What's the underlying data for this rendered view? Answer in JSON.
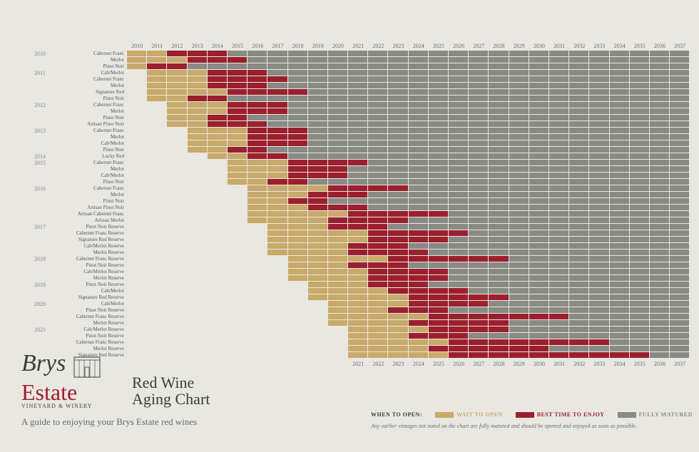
{
  "colors": {
    "wait": "#c9a96a",
    "best": "#9c1f2e",
    "mature": "#8a8a85",
    "empty": "transparent",
    "bg": "#e8e7e2"
  },
  "years_top": [
    2010,
    2011,
    2012,
    2013,
    2014,
    2015,
    2016,
    2017,
    2018,
    2019,
    2020,
    2021,
    2022,
    2023,
    2024,
    2025,
    2026,
    2027,
    2028,
    2029,
    2030,
    2031,
    2032,
    2033,
    2034,
    2035,
    2036,
    2037
  ],
  "years_bottom": [
    2021,
    2022,
    2023,
    2024,
    2025,
    2026,
    2027,
    2028,
    2029,
    2030,
    2031,
    2032,
    2033,
    2034,
    2035,
    2036,
    2037
  ],
  "year_start": 2010,
  "year_end": 2037,
  "vintages": [
    {
      "year": "2010",
      "wines": [
        {
          "name": "Cabernet Franc",
          "wait": [
            2010,
            2011
          ],
          "best": [
            2012,
            2014
          ],
          "mature": [
            2015,
            2037
          ]
        },
        {
          "name": "Merlot",
          "wait": [
            2010,
            2012
          ],
          "best": [
            2013,
            2015
          ],
          "mature": [
            2016,
            2037
          ]
        },
        {
          "name": "Pinot Noir",
          "wait": [
            2010,
            2010
          ],
          "best": [
            2011,
            2012
          ],
          "mature": [
            2013,
            2037
          ]
        }
      ]
    },
    {
      "year": "2011",
      "wines": [
        {
          "name": "Cab/Merlot",
          "wait": [
            2011,
            2013
          ],
          "best": [
            2014,
            2016
          ],
          "mature": [
            2017,
            2037
          ]
        },
        {
          "name": "Cabernet Franc",
          "wait": [
            2011,
            2013
          ],
          "best": [
            2014,
            2017
          ],
          "mature": [
            2018,
            2037
          ]
        },
        {
          "name": "Merlot",
          "wait": [
            2011,
            2013
          ],
          "best": [
            2014,
            2016
          ],
          "mature": [
            2017,
            2037
          ]
        },
        {
          "name": "Signature Red",
          "wait": [
            2011,
            2014
          ],
          "best": [
            2015,
            2018
          ],
          "mature": [
            2019,
            2037
          ]
        },
        {
          "name": "Pinot Noir",
          "wait": [
            2011,
            2012
          ],
          "best": [
            2013,
            2014
          ],
          "mature": [
            2015,
            2037
          ]
        }
      ]
    },
    {
      "year": "2012",
      "wines": [
        {
          "name": "Cabernet Franc",
          "wait": [
            2012,
            2014
          ],
          "best": [
            2015,
            2017
          ],
          "mature": [
            2018,
            2037
          ]
        },
        {
          "name": "Merlot",
          "wait": [
            2012,
            2014
          ],
          "best": [
            2015,
            2017
          ],
          "mature": [
            2018,
            2037
          ]
        },
        {
          "name": "Pinot Noir",
          "wait": [
            2012,
            2013
          ],
          "best": [
            2014,
            2015
          ],
          "mature": [
            2016,
            2037
          ]
        },
        {
          "name": "Artisan Pinot Noir",
          "wait": [
            2012,
            2013
          ],
          "best": [
            2014,
            2016
          ],
          "mature": [
            2017,
            2037
          ]
        }
      ]
    },
    {
      "year": "2013",
      "wines": [
        {
          "name": "Cabernet Franc",
          "wait": [
            2013,
            2015
          ],
          "best": [
            2016,
            2018
          ],
          "mature": [
            2019,
            2037
          ]
        },
        {
          "name": "Merlot",
          "wait": [
            2013,
            2015
          ],
          "best": [
            2016,
            2018
          ],
          "mature": [
            2019,
            2037
          ]
        },
        {
          "name": "Cab/Merlot",
          "wait": [
            2013,
            2015
          ],
          "best": [
            2016,
            2018
          ],
          "mature": [
            2019,
            2037
          ]
        },
        {
          "name": "Pinot Noir",
          "wait": [
            2013,
            2014
          ],
          "best": [
            2015,
            2016
          ],
          "mature": [
            2017,
            2037
          ]
        }
      ]
    },
    {
      "year": "2014",
      "wines": [
        {
          "name": "Lucky Red",
          "wait": [
            2014,
            2015
          ],
          "best": [
            2016,
            2017
          ],
          "mature": [
            2018,
            2037
          ]
        }
      ]
    },
    {
      "year": "2015",
      "wines": [
        {
          "name": "Cabernet Franc",
          "wait": [
            2015,
            2017
          ],
          "best": [
            2018,
            2021
          ],
          "mature": [
            2022,
            2037
          ]
        },
        {
          "name": "Merlot",
          "wait": [
            2015,
            2017
          ],
          "best": [
            2018,
            2020
          ],
          "mature": [
            2021,
            2037
          ]
        },
        {
          "name": "Cab/Merlot",
          "wait": [
            2015,
            2017
          ],
          "best": [
            2018,
            2020
          ],
          "mature": [
            2021,
            2037
          ]
        },
        {
          "name": "Pinot Noir",
          "wait": [
            2015,
            2016
          ],
          "best": [
            2017,
            2018
          ],
          "mature": [
            2019,
            2037
          ]
        }
      ]
    },
    {
      "year": "2016",
      "wines": [
        {
          "name": "Cabernet Franc",
          "wait": [
            2016,
            2019
          ],
          "best": [
            2020,
            2023
          ],
          "mature": [
            2024,
            2037
          ]
        },
        {
          "name": "Merlot",
          "wait": [
            2016,
            2018
          ],
          "best": [
            2019,
            2021
          ],
          "mature": [
            2022,
            2037
          ]
        },
        {
          "name": "Pinot Noir",
          "wait": [
            2016,
            2017
          ],
          "best": [
            2018,
            2019
          ],
          "mature": [
            2020,
            2037
          ]
        },
        {
          "name": "Artisan Pinot Noir",
          "wait": [
            2016,
            2018
          ],
          "best": [
            2019,
            2021
          ],
          "mature": [
            2022,
            2037
          ]
        },
        {
          "name": "Artisan Cabernet Franc",
          "wait": [
            2016,
            2020
          ],
          "best": [
            2021,
            2025
          ],
          "mature": [
            2026,
            2037
          ]
        },
        {
          "name": "Artisan Merlot",
          "wait": [
            2016,
            2019
          ],
          "best": [
            2020,
            2023
          ],
          "mature": [
            2024,
            2037
          ]
        }
      ]
    },
    {
      "year": "2017",
      "wines": [
        {
          "name": "Pinot Noir Reserve",
          "wait": [
            2017,
            2019
          ],
          "best": [
            2020,
            2022
          ],
          "mature": [
            2023,
            2037
          ]
        },
        {
          "name": "Cabernet Franc Reserve",
          "wait": [
            2017,
            2021
          ],
          "best": [
            2022,
            2026
          ],
          "mature": [
            2027,
            2037
          ]
        },
        {
          "name": "Signature Red Reserve",
          "wait": [
            2017,
            2021
          ],
          "best": [
            2022,
            2025
          ],
          "mature": [
            2026,
            2037
          ]
        },
        {
          "name": "Cab/Merlot Reserve",
          "wait": [
            2017,
            2020
          ],
          "best": [
            2021,
            2023
          ],
          "mature": [
            2024,
            2037
          ]
        },
        {
          "name": "Merlot Reserve",
          "wait": [
            2017,
            2020
          ],
          "best": [
            2021,
            2024
          ],
          "mature": [
            2025,
            2037
          ]
        }
      ]
    },
    {
      "year": "2018",
      "wines": [
        {
          "name": "Cabernet Franc Reserve",
          "wait": [
            2018,
            2022
          ],
          "best": [
            2023,
            2028
          ],
          "mature": [
            2029,
            2037
          ]
        },
        {
          "name": "Pinot Noir Reserve",
          "wait": [
            2018,
            2020
          ],
          "best": [
            2021,
            2023
          ],
          "mature": [
            2024,
            2037
          ]
        },
        {
          "name": "Cab/Merlot Reserve",
          "wait": [
            2018,
            2021
          ],
          "best": [
            2022,
            2025
          ],
          "mature": [
            2026,
            2037
          ]
        },
        {
          "name": "Merlot Reserve",
          "wait": [
            2018,
            2021
          ],
          "best": [
            2022,
            2025
          ],
          "mature": [
            2026,
            2037
          ]
        }
      ]
    },
    {
      "year": "2019",
      "wines": [
        {
          "name": "Pinot Noir Reserve",
          "wait": [
            2019,
            2021
          ],
          "best": [
            2022,
            2024
          ],
          "mature": [
            2025,
            2037
          ]
        },
        {
          "name": "Cab/Merlot",
          "wait": [
            2019,
            2022
          ],
          "best": [
            2023,
            2026
          ],
          "mature": [
            2027,
            2037
          ]
        },
        {
          "name": "Signature Red Reserve",
          "wait": [
            2019,
            2023
          ],
          "best": [
            2024,
            2028
          ],
          "mature": [
            2029,
            2037
          ]
        }
      ]
    },
    {
      "year": "2020",
      "wines": [
        {
          "name": "Cab/Merlot",
          "wait": [
            2020,
            2023
          ],
          "best": [
            2024,
            2027
          ],
          "mature": [
            2028,
            2037
          ]
        },
        {
          "name": "Pinot Noir Reserve",
          "wait": [
            2020,
            2022
          ],
          "best": [
            2023,
            2025
          ],
          "mature": [
            2026,
            2037
          ]
        },
        {
          "name": "Cabernet Franc Reserve",
          "wait": [
            2020,
            2024
          ],
          "best": [
            2025,
            2031
          ],
          "mature": [
            2032,
            2037
          ]
        },
        {
          "name": "Merlot Reserve",
          "wait": [
            2020,
            2023
          ],
          "best": [
            2024,
            2028
          ],
          "mature": [
            2029,
            2037
          ]
        }
      ]
    },
    {
      "year": "2021",
      "wines": [
        {
          "name": "Cab/Merlot Reserve",
          "wait": [
            2021,
            2024
          ],
          "best": [
            2025,
            2028
          ],
          "mature": [
            2029,
            2037
          ]
        },
        {
          "name": "Pinot Noir Reserve",
          "wait": [
            2021,
            2023
          ],
          "best": [
            2024,
            2026
          ],
          "mature": [
            2027,
            2037
          ]
        },
        {
          "name": "Cabernet Franc Reserve",
          "wait": [
            2021,
            2025
          ],
          "best": [
            2026,
            2033
          ],
          "mature": [
            2034,
            2037
          ]
        },
        {
          "name": "Merlot Reserve",
          "wait": [
            2021,
            2024
          ],
          "best": [
            2025,
            2030
          ],
          "mature": [
            2031,
            2037
          ]
        },
        {
          "name": "Signature Red Reserve",
          "wait": [
            2021,
            2025
          ],
          "best": [
            2026,
            2035
          ],
          "mature": [
            2036,
            2037
          ]
        }
      ]
    }
  ],
  "logo": {
    "line1": "Brys",
    "line2": "Estate",
    "sub": "VineYard & Winery"
  },
  "title": {
    "line1": "Red Wine",
    "line2": "Aging Chart"
  },
  "subtitle": "A guide to enjoying your Brys Estate red wines",
  "legend": {
    "label": "WHEN TO OPEN:",
    "items": [
      {
        "text": "WAIT TO OPEN",
        "color": "#c9a96a",
        "textcolor": "#c9a96a"
      },
      {
        "text": "BEST TIME TO ENJOY",
        "color": "#9c1f2e",
        "textcolor": "#9c1f2e"
      },
      {
        "text": "FULLY MATURED",
        "color": "#8a8a85",
        "textcolor": "#8a8a85"
      }
    ]
  },
  "footnote": "Any earlier vintages not noted on the chart are fully matured and should be opened and enjoyed as soon as possible."
}
